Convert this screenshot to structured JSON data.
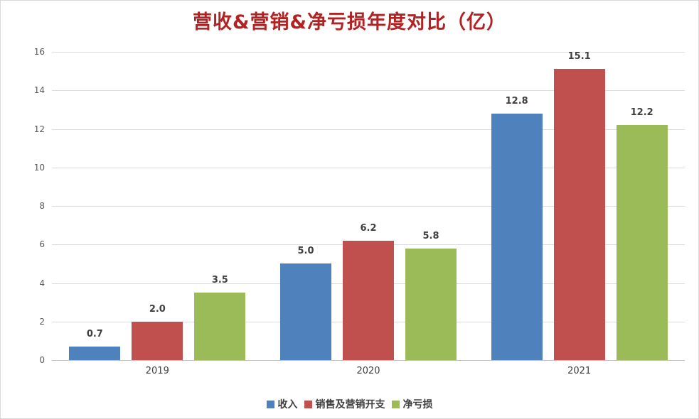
{
  "title": "营收&营销&净亏损年度对比（亿）",
  "colors": {
    "title": "#B22222",
    "gridline": "#DCDCDC",
    "axis_line": "#BFBFBF",
    "tick_text": "#595959",
    "label_text": "#404040",
    "border": "#D9D9D9",
    "background": "#FFFFFF"
  },
  "chart_data": {
    "type": "bar",
    "title": "营收&营销&净亏损年度对比（亿）",
    "categories": [
      "2019",
      "2020",
      "2021"
    ],
    "series": [
      {
        "name": "收入",
        "key": "revenue",
        "color": "#4F81BD",
        "values": [
          0.7,
          5.0,
          12.8
        ]
      },
      {
        "name": "销售及营销开支",
        "key": "sales-marketing-expense",
        "color": "#C0504D",
        "values": [
          2.0,
          6.2,
          15.1
        ]
      },
      {
        "name": "净亏损",
        "key": "net-loss",
        "color": "#9BBB59",
        "values": [
          3.5,
          5.8,
          12.2
        ]
      }
    ],
    "xlabel": "",
    "ylabel": "",
    "ylim": [
      0,
      16
    ],
    "ytick_step": 2,
    "ytick_labels": [
      "0",
      "2",
      "4",
      "6",
      "8",
      "10",
      "12",
      "14",
      "16"
    ],
    "grid": true,
    "legend_position": "bottom",
    "data_labels": [
      [
        "0.7",
        "5.0",
        "12.8"
      ],
      [
        "2.0",
        "6.2",
        "15.1"
      ],
      [
        "3.5",
        "5.8",
        "12.2"
      ]
    ]
  }
}
